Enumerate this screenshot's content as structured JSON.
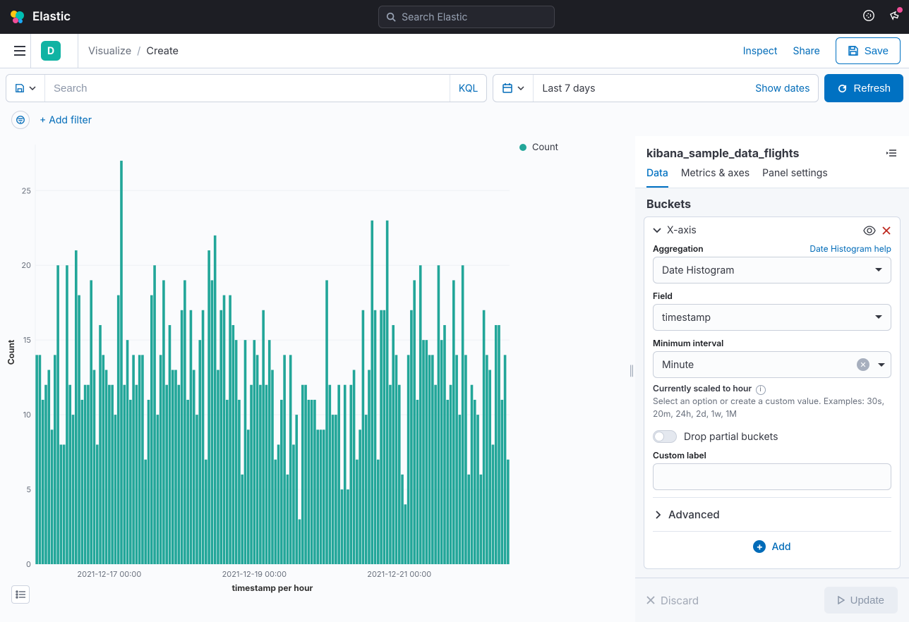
{
  "brand": "Elastic",
  "global_search_placeholder": "Search Elastic",
  "space_initial": "D",
  "breadcrumb_parent": "Visualize",
  "breadcrumb_current": "Create",
  "nav_inspect": "Inspect",
  "nav_share": "Share",
  "nav_save": "Save",
  "querybar": {
    "search_placeholder": "Search",
    "lang": "KQL",
    "timerange": "Last 7 days",
    "showdates": "Show dates",
    "refresh": "Refresh",
    "add_filter": "+ Add filter"
  },
  "legend_label": "Count",
  "chart": {
    "type": "bar",
    "y_label": "Count",
    "x_label": "timestamp per hour",
    "bar_color": "#22a699",
    "grid_color": "#eef1f5",
    "background_color": "#ffffff",
    "ylim": [
      0,
      27
    ],
    "yticks": [
      0,
      5,
      10,
      15,
      20,
      25
    ],
    "categories_labels": [
      {
        "index": 24,
        "label": "2021-12-17 00:00"
      },
      {
        "index": 72,
        "label": "2021-12-19 00:00"
      },
      {
        "index": 120,
        "label": "2021-12-21 00:00"
      }
    ],
    "values": [
      14,
      14,
      11,
      12,
      13,
      9,
      14,
      20,
      8,
      8,
      20,
      12,
      10,
      21,
      18,
      11,
      12,
      12,
      19,
      13,
      8,
      16,
      14,
      13,
      12,
      12,
      10,
      18,
      27,
      12,
      15,
      11,
      14,
      12,
      14,
      14,
      7,
      11,
      18,
      20,
      10,
      14,
      19,
      12,
      16,
      13,
      13,
      12,
      17,
      19,
      11,
      17,
      13,
      10,
      15,
      17,
      7,
      21,
      19,
      22,
      13,
      17,
      18,
      11,
      18,
      16,
      15,
      11,
      6,
      15,
      9,
      12,
      15,
      14,
      12,
      17,
      12,
      15,
      13,
      7,
      8,
      11,
      14,
      6,
      14,
      8,
      10,
      3,
      12,
      12,
      11,
      11,
      11,
      9,
      9,
      9,
      19,
      12,
      10,
      10,
      12,
      5,
      12,
      5,
      12,
      13,
      7,
      9,
      17,
      10,
      13,
      23,
      17,
      7,
      17,
      17,
      23,
      12,
      16,
      14,
      12,
      6,
      4,
      14,
      17,
      19,
      11,
      20,
      15,
      15,
      14,
      14,
      12,
      20,
      15,
      16,
      11,
      12,
      19,
      14,
      10,
      20,
      14,
      6,
      12,
      11,
      10,
      6,
      17,
      14,
      13,
      8,
      16,
      16,
      11,
      14,
      7
    ]
  },
  "sidebar": {
    "index_pattern": "kibana_sample_data_flights",
    "tabs": [
      "Data",
      "Metrics & axes",
      "Panel settings"
    ],
    "buckets_title": "Buckets",
    "agg_title": "X-axis",
    "aggregation_label": "Aggregation",
    "aggregation_help": "Date Histogram help",
    "aggregation_value": "Date Histogram",
    "field_label": "Field",
    "field_value": "timestamp",
    "min_interval_label": "Minimum interval",
    "min_interval_value": "Minute",
    "scaled_hint_bold": "Currently scaled to hour",
    "scaled_hint": "Select an option or create a custom value. Examples: 30s, 20m, 24h, 2d, 1w, 1M",
    "drop_partial": "Drop partial buckets",
    "custom_label": "Custom label",
    "advanced": "Advanced",
    "add": "Add",
    "discard": "Discard",
    "update": "Update"
  }
}
